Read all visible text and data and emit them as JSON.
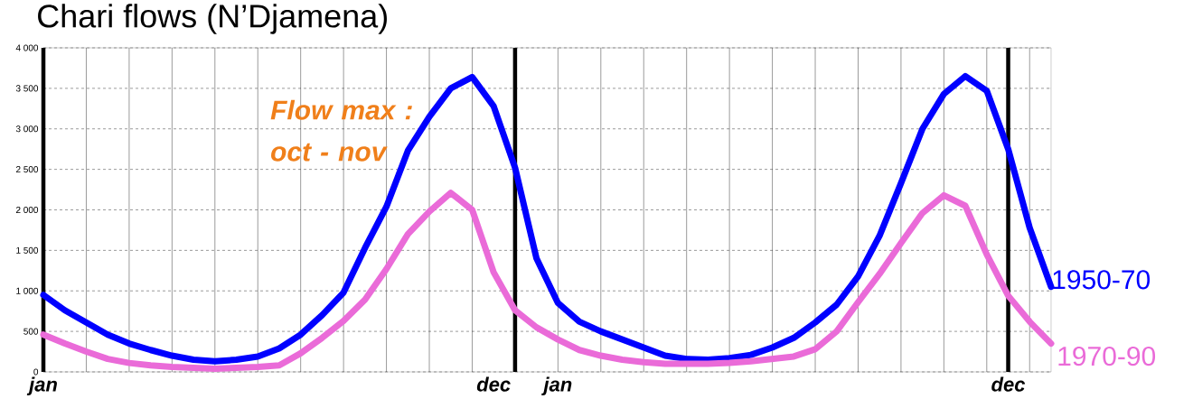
{
  "chart_data": {
    "type": "line",
    "title": "Chari flows (N’Djamena)",
    "annotations": [
      "Flow max : oct - nov"
    ],
    "categories": [
      "jan",
      null,
      null,
      null,
      null,
      null,
      null,
      null,
      null,
      null,
      null,
      null,
      null,
      null,
      null,
      null,
      null,
      null,
      null,
      null,
      null,
      "dec",
      null,
      null,
      "jan",
      null,
      null,
      null,
      null,
      null,
      null,
      null,
      null,
      null,
      null,
      null,
      null,
      null,
      null,
      null,
      null,
      null,
      null,
      null,
      null,
      "dec",
      null,
      null
    ],
    "series": [
      {
        "name": "1950-70",
        "color": "#0000ff",
        "values": [
          950,
          760,
          610,
          460,
          350,
          270,
          200,
          150,
          130,
          150,
          190,
          290,
          460,
          700,
          980,
          1530,
          2040,
          2730,
          3150,
          3500,
          3640,
          3280,
          2520,
          1400,
          850,
          620,
          500,
          400,
          300,
          200,
          160,
          150,
          170,
          210,
          300,
          420,
          610,
          830,
          1180,
          1680,
          2330,
          3000,
          3430,
          3650,
          3470,
          2750,
          1780,
          1050
        ]
      },
      {
        "name": "1970-90",
        "color": "#ea6bd8",
        "values": [
          460,
          350,
          250,
          160,
          110,
          80,
          60,
          50,
          40,
          50,
          60,
          80,
          230,
          420,
          630,
          890,
          1270,
          1700,
          1980,
          2210,
          2000,
          1230,
          760,
          550,
          400,
          270,
          200,
          150,
          120,
          100,
          100,
          100,
          110,
          130,
          160,
          190,
          280,
          500,
          860,
          1210,
          1590,
          1960,
          2180,
          2050,
          1450,
          940,
          620,
          350
        ]
      }
    ],
    "ylim": [
      0,
      4000
    ],
    "yticks": [
      0,
      500,
      {
        "value": 1000,
        "label": "1 000"
      },
      {
        "value": 1500,
        "label": "1 500"
      },
      {
        "value": 2000,
        "label": "2 000"
      },
      {
        "value": 2500,
        "label": "2 500"
      },
      {
        "value": 3000,
        "label": "3 000"
      },
      {
        "value": 3500,
        "label": "3 500"
      },
      {
        "value": 4000,
        "label": "4 000"
      }
    ],
    "grid": true
  }
}
